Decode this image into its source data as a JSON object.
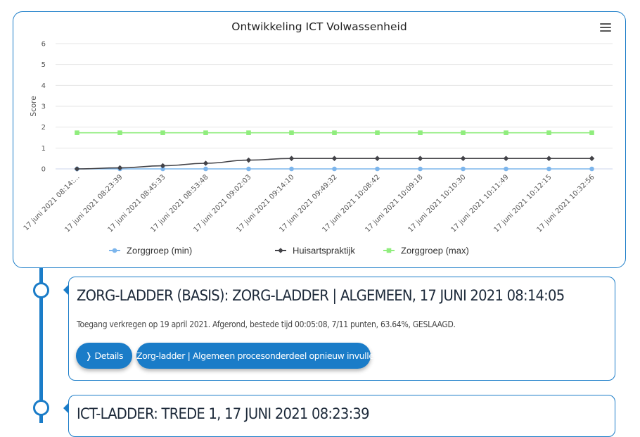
{
  "chart_data": {
    "type": "line",
    "title": "Ontwikkeling ICT Volwassenheid",
    "ylabel": "Score",
    "xlabel": "",
    "ylim": [
      0,
      6
    ],
    "yticks": [
      "0",
      "1",
      "2",
      "3",
      "4",
      "5",
      "6"
    ],
    "grid": true,
    "legend_position": "bottom",
    "categories": [
      "17 juni 2021 08:14:...",
      "17 juni 2021 08:23:39",
      "17 juni 2021 08:45:33",
      "17 juni 2021 08:53:48",
      "17 juni 2021 09:02:03",
      "17 juni 2021 09:14:10",
      "17 juni 2021 09:49:32",
      "17 juni 2021 10:08:42",
      "17 juni 2021 10:09:18",
      "17 juni 2021 10:10:30",
      "17 juni 2021 10:11:49",
      "17 juni 2021 10:12:15",
      "17 juni 2021 10:32:56"
    ],
    "series": [
      {
        "name": "Zorggroep (min)",
        "color": "#7cb5ec",
        "marker": "circle",
        "values": [
          0,
          0,
          0,
          0,
          0,
          0,
          0,
          0,
          0,
          0,
          0,
          0,
          0
        ]
      },
      {
        "name": "Huisartspraktijk",
        "color": "#434348",
        "marker": "diamond",
        "values": [
          0,
          0.05,
          0.15,
          0.27,
          0.42,
          0.5,
          0.5,
          0.5,
          0.5,
          0.5,
          0.5,
          0.5,
          0.5
        ]
      },
      {
        "name": "Zorggroep (max)",
        "color": "#90ed7d",
        "marker": "square",
        "values": [
          1.73,
          1.73,
          1.73,
          1.73,
          1.73,
          1.73,
          1.73,
          1.73,
          1.73,
          1.73,
          1.73,
          1.73,
          1.73
        ]
      }
    ]
  },
  "timeline": {
    "entries": [
      {
        "title": "ZORG-LADDER (BASIS): ZORG-LADDER | ALGEMEEN, 17 JUNI 2021 08:14:05",
        "description": "Toegang verkregen op 19 april 2021. Afgerond, bestede tijd 00:05:08, 7/11 punten, 63.64%, GESLAAGD.",
        "details_label": "❭ Details",
        "redo_label": "Zorg-ladder | Algemeen procesonderdeel opnieuw invullen"
      },
      {
        "title": "ICT-LADDER: TREDE 1, 17 JUNI 2021 08:23:39"
      }
    ]
  }
}
